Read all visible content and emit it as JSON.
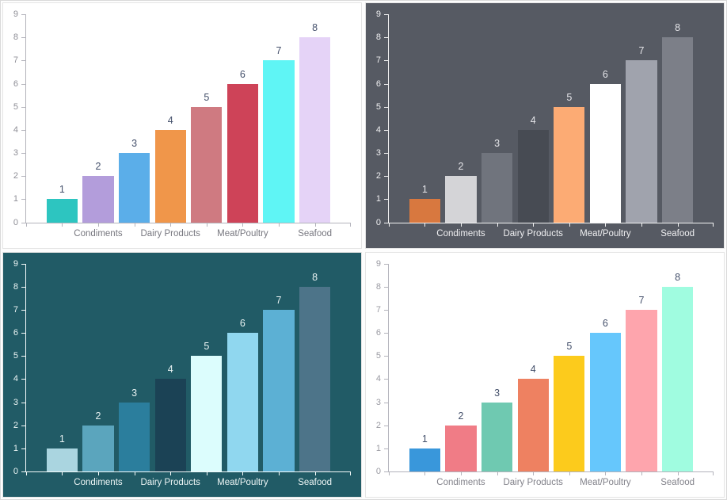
{
  "page": {
    "background": "#fdfdfd",
    "panel_border_color": "#e4e4e4",
    "layout": "2x2-grid-of-bar-charts"
  },
  "chart_data": [
    {
      "id": "chart-top-left",
      "type": "bar",
      "theme": "light",
      "title": "",
      "xlabel": "",
      "ylabel": "",
      "categories": [
        "Condiments",
        "Dairy Products",
        "Meat/Poultry",
        "Seafood"
      ],
      "values": [
        1,
        2,
        3,
        4,
        5,
        6,
        7,
        8
      ],
      "y_ticks": [
        0,
        1,
        2,
        3,
        4,
        5,
        6,
        7,
        8,
        9
      ],
      "ylim": [
        0,
        9
      ],
      "grid": "off",
      "legend": "none",
      "background": "#ffffff",
      "bar_colors": [
        "#2dc5c0",
        "#b39ddb",
        "#5baee9",
        "#f0964a",
        "#cf7a81",
        "#ce4358",
        "#5ff5f5",
        "#e5d3f7"
      ],
      "axis_color": "#b3b3bb",
      "y_label_color": "#8e8e96",
      "x_label_color": "#77777f",
      "data_label_color": "#44506b"
    },
    {
      "id": "chart-top-right",
      "type": "bar",
      "theme": "dark-gray",
      "title": "",
      "xlabel": "",
      "ylabel": "",
      "categories": [
        "Condiments",
        "Dairy Products",
        "Meat/Poultry",
        "Seafood"
      ],
      "values": [
        1,
        2,
        3,
        4,
        5,
        6,
        7,
        8
      ],
      "y_ticks": [
        0,
        1,
        2,
        3,
        4,
        5,
        6,
        7,
        8,
        9
      ],
      "ylim": [
        0,
        9
      ],
      "grid": "off",
      "legend": "none",
      "background": "#565a63",
      "bar_colors": [
        "#d8783f",
        "#d4d4d7",
        "#70747d",
        "#474b53",
        "#fcab74",
        "#ffffff",
        "#a0a3ad",
        "#7c7f88"
      ],
      "axis_color": "#f5f5f5",
      "y_label_color": "#f0f0f2",
      "x_label_color": "#f0f0f2",
      "data_label_color": "#e4e4e8"
    },
    {
      "id": "chart-bottom-left",
      "type": "bar",
      "theme": "dark-teal",
      "title": "",
      "xlabel": "",
      "ylabel": "",
      "categories": [
        "Condiments",
        "Dairy Products",
        "Meat/Poultry",
        "Seafood"
      ],
      "values": [
        1,
        2,
        3,
        4,
        5,
        6,
        7,
        8
      ],
      "y_ticks": [
        0,
        1,
        2,
        3,
        4,
        5,
        6,
        7,
        8,
        9
      ],
      "ylim": [
        0,
        9
      ],
      "grid": "off",
      "legend": "none",
      "background": "#215b66",
      "bar_colors": [
        "#aad5e0",
        "#5ba5bd",
        "#2b7e9d",
        "#1b4255",
        "#dcfdfd",
        "#90d7ef",
        "#5cb0d4",
        "#4d7489"
      ],
      "axis_color": "#f5fafa",
      "y_label_color": "#eef6f6",
      "x_label_color": "#eef6f6",
      "data_label_color": "#e8f2f2"
    },
    {
      "id": "chart-bottom-right",
      "type": "bar",
      "theme": "light",
      "title": "",
      "xlabel": "",
      "ylabel": "",
      "categories": [
        "Condiments",
        "Dairy Products",
        "Meat/Poultry",
        "Seafood"
      ],
      "values": [
        1,
        2,
        3,
        4,
        5,
        6,
        7,
        8
      ],
      "y_ticks": [
        0,
        1,
        2,
        3,
        4,
        5,
        6,
        7,
        8,
        9
      ],
      "ylim": [
        0,
        9
      ],
      "grid": "off",
      "legend": "none",
      "background": "#ffffff",
      "bar_colors": [
        "#3997db",
        "#f07c86",
        "#6fc9b1",
        "#ee8161",
        "#fccb1c",
        "#66c7fc",
        "#fea5ad",
        "#a0fce0"
      ],
      "axis_color": "#b3b3bb",
      "y_label_color": "#9a9aa2",
      "x_label_color": "#82828a",
      "data_label_color": "#44506b"
    }
  ]
}
